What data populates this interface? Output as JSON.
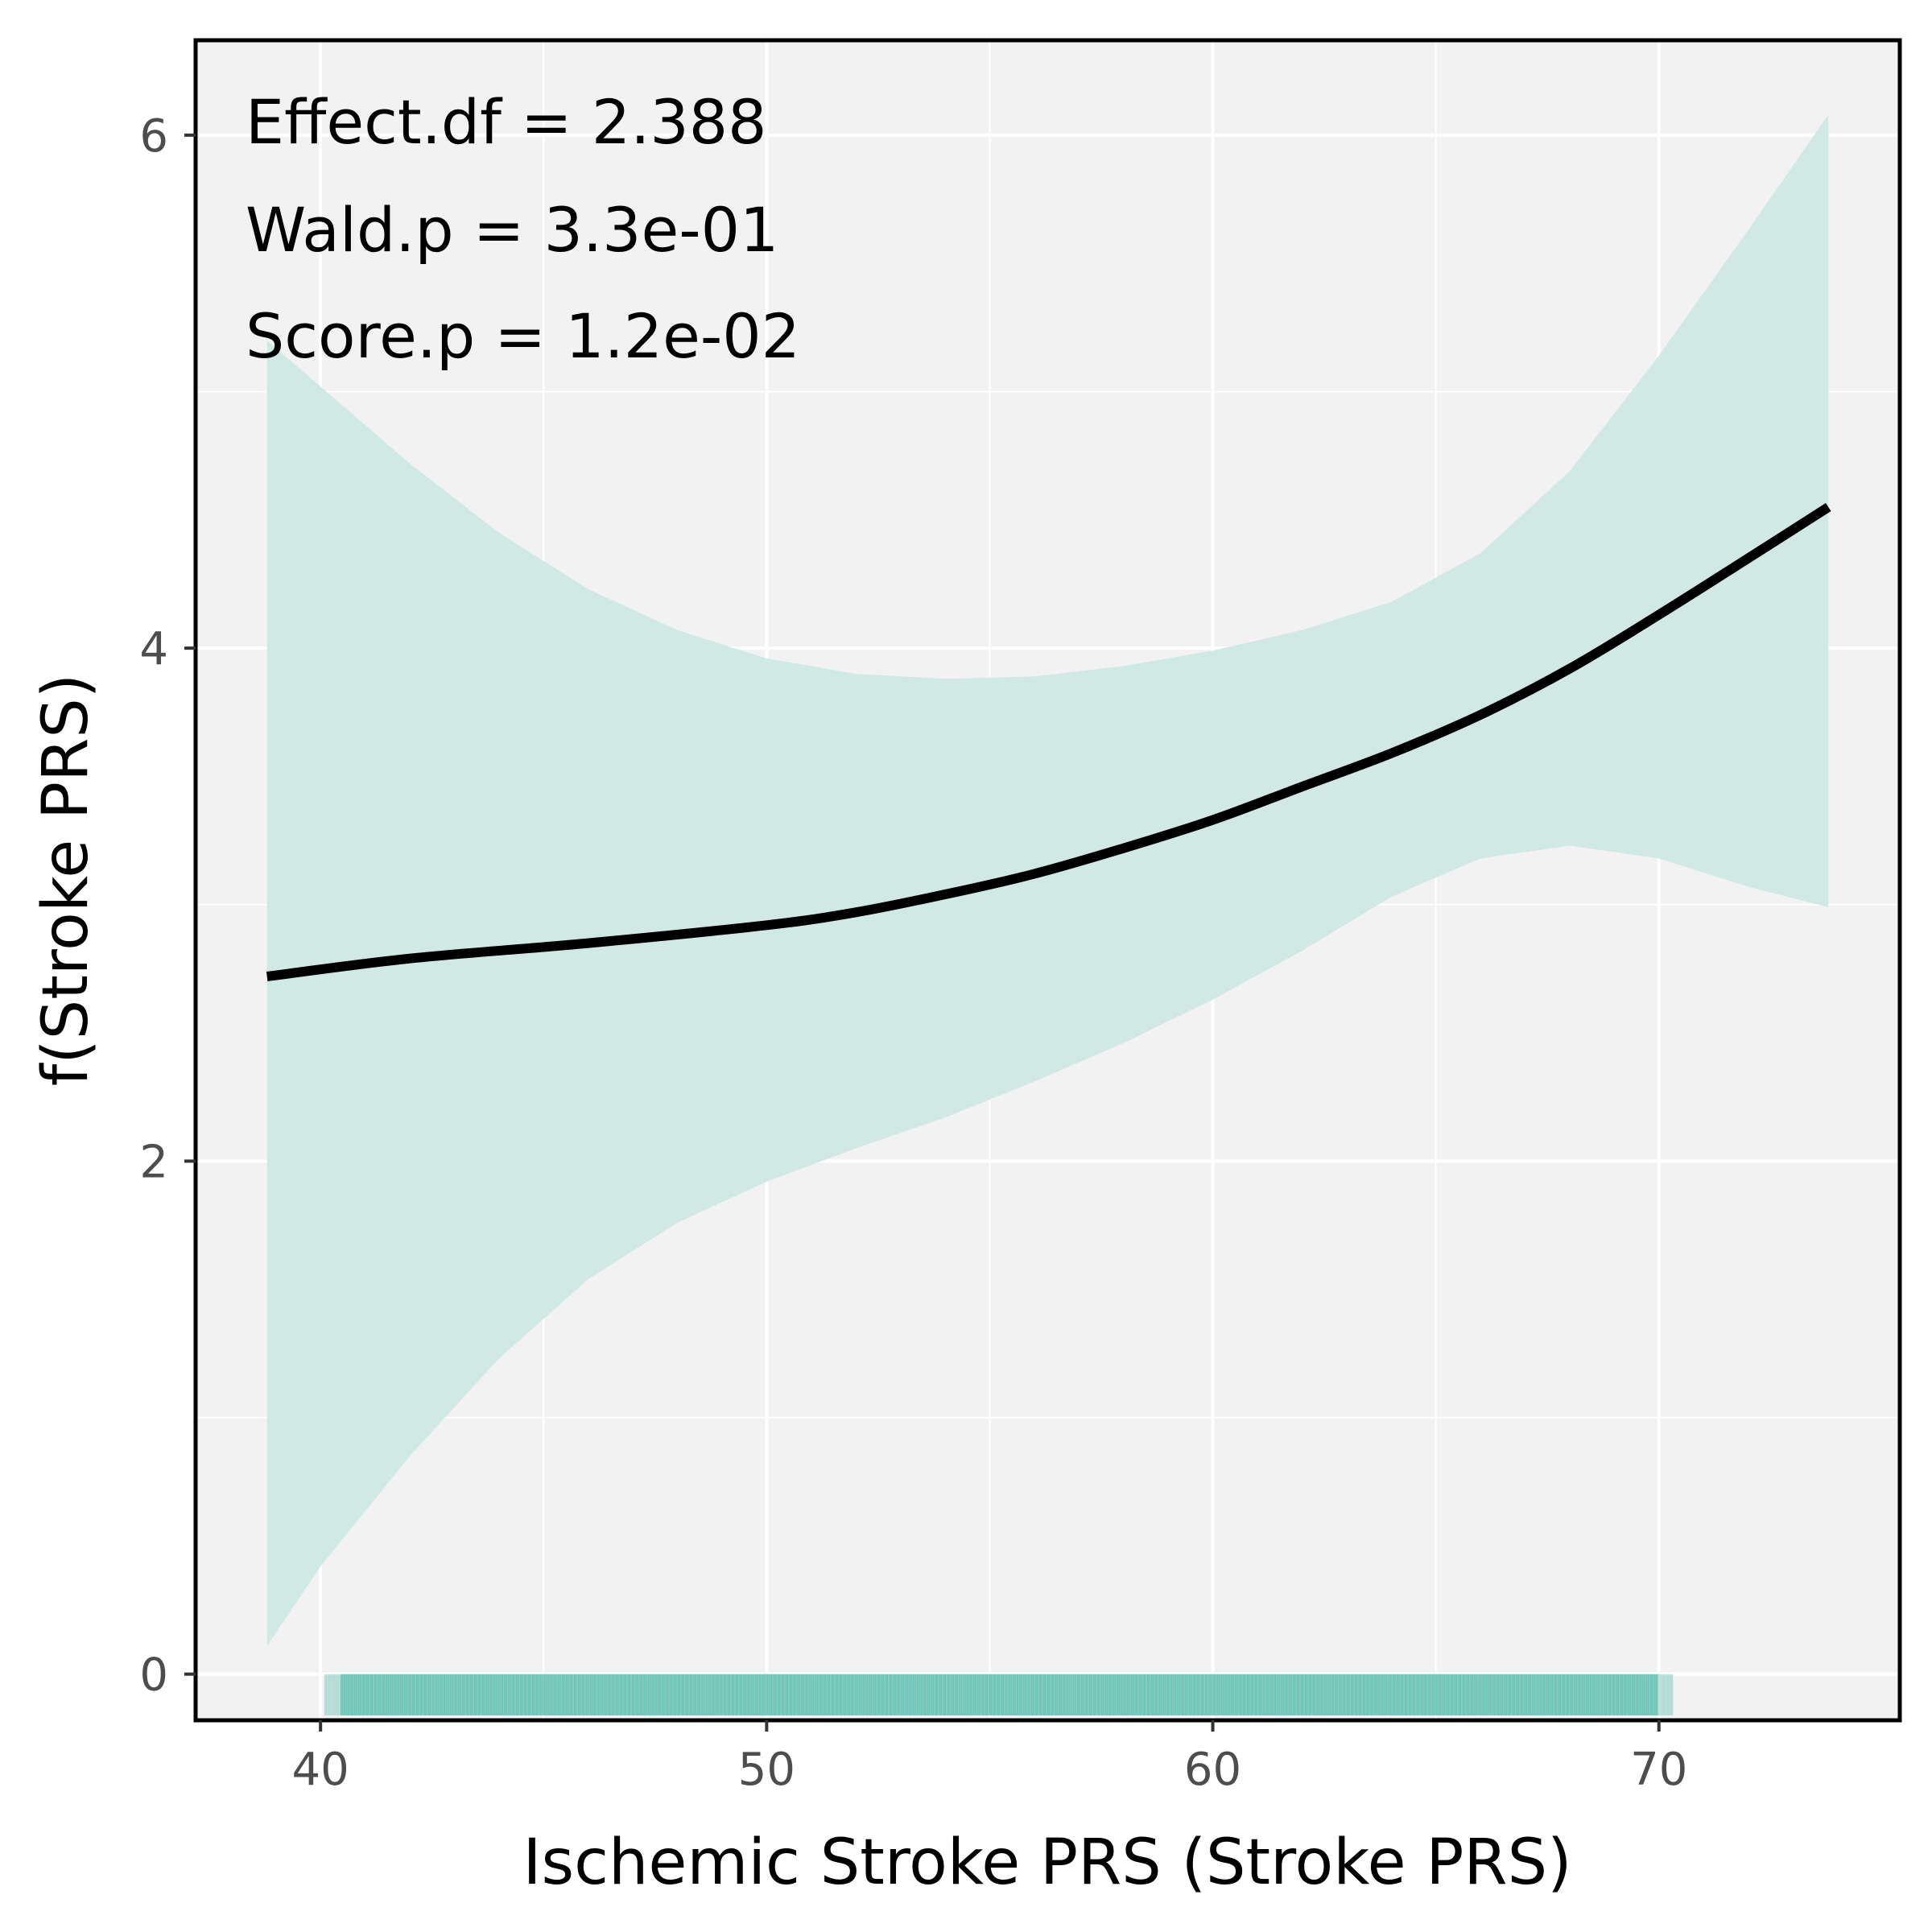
{
  "chart_data": {
    "type": "line",
    "title": "",
    "xlabel": "Ischemic Stroke PRS (Stroke PRS)",
    "ylabel": "f(Stroke PRS)",
    "xlim": [
      37.2,
      75.4
    ],
    "ylim": [
      -0.18,
      6.37
    ],
    "x_ticks": [
      40,
      50,
      60,
      70
    ],
    "y_ticks": [
      0,
      2,
      4,
      6
    ],
    "x_tick_labels": [
      "40",
      "50",
      "60",
      "70"
    ],
    "y_tick_labels": [
      "0",
      "2",
      "4",
      "6"
    ],
    "grid": true,
    "annotations": [
      "Effect.df = 2.388",
      "Wald.p = 3.3e-01",
      "Score.p = 1.2e-02"
    ],
    "series": [
      {
        "x": [
          38.8,
          42,
          46,
          50,
          52,
          54,
          56,
          58,
          60,
          62,
          64,
          66,
          68,
          70,
          72,
          73.8
        ],
        "values": [
          2.72,
          2.79,
          2.85,
          2.92,
          2.97,
          3.04,
          3.12,
          3.22,
          3.33,
          3.46,
          3.59,
          3.74,
          3.92,
          4.13,
          4.35,
          4.55
        ]
      }
    ],
    "confidence_band": {
      "x": [
        38.8,
        40,
        42,
        44,
        46,
        48,
        50,
        52,
        54,
        56,
        58,
        60,
        62,
        64,
        66,
        68,
        70,
        72,
        73.8
      ],
      "upper": [
        5.2,
        5.02,
        4.72,
        4.45,
        4.23,
        4.07,
        3.96,
        3.9,
        3.88,
        3.89,
        3.93,
        3.99,
        4.07,
        4.18,
        4.37,
        4.69,
        5.14,
        5.63,
        6.08
      ],
      "lower": [
        0.11,
        0.42,
        0.85,
        1.23,
        1.54,
        1.76,
        1.92,
        2.05,
        2.17,
        2.31,
        2.46,
        2.63,
        2.82,
        3.03,
        3.18,
        3.23,
        3.18,
        3.07,
        2.99
      ]
    },
    "rug": {
      "x_min": 40.1,
      "x_max": 70.3
    },
    "colors": {
      "line": "#000000",
      "band": "#cfe8e4",
      "rug": "#66c2b4",
      "panel": "#f2f2f2",
      "grid": "#ffffff",
      "border": "#000000"
    }
  }
}
